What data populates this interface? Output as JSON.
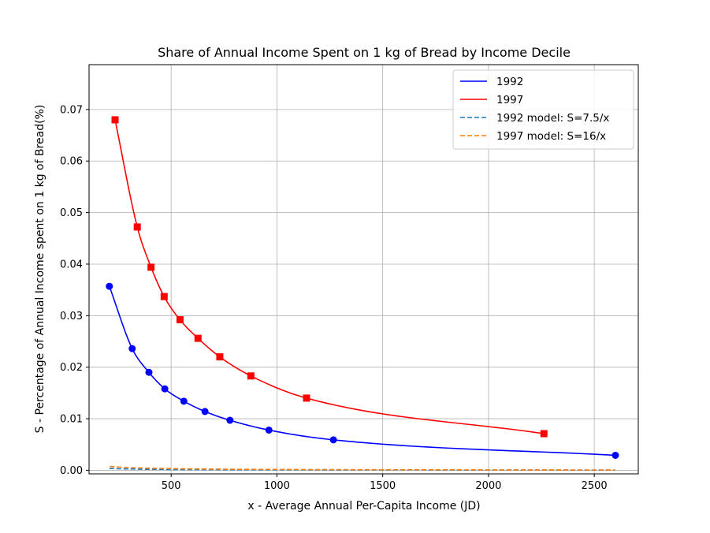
{
  "chart_data": {
    "type": "line",
    "title": "Share of Annual Income Spent on 1 kg of Bread by Income Decile",
    "xlabel": "x - Average Annual Per-Capita Income (JD)",
    "ylabel": "S - Percentage of Annual Income spent on 1 kg of Bread(%)",
    "xlim": [
      112,
      2708
    ],
    "ylim": [
      -0.0007,
      0.0787
    ],
    "xticks": [
      500,
      1000,
      1500,
      2000,
      2500
    ],
    "yticks": [
      0.0,
      0.01,
      0.02,
      0.03,
      0.04,
      0.05,
      0.06,
      0.07
    ],
    "xtick_labels": [
      "500",
      "1000",
      "1500",
      "2000",
      "2500"
    ],
    "ytick_labels": [
      "0.00",
      "0.01",
      "0.02",
      "0.03",
      "0.04",
      "0.05",
      "0.06",
      "0.07"
    ],
    "grid": true,
    "legend_position": "top-right",
    "series": [
      {
        "name": "1992",
        "style": "solid",
        "marker": "circle",
        "color": "#0000ff",
        "x": [
          208,
          316,
          395,
          470,
          560,
          660,
          778,
          962,
          1267,
          2600
        ],
        "y": [
          0.0357,
          0.0236,
          0.019,
          0.0158,
          0.0134,
          0.0114,
          0.0097,
          0.0078,
          0.0059,
          0.0029
        ]
      },
      {
        "name": "1997",
        "style": "solid",
        "marker": "square",
        "color": "#ff0000",
        "x": [
          235,
          340,
          405,
          467,
          542,
          627,
          730,
          877,
          1140,
          2262
        ],
        "y": [
          0.068,
          0.0472,
          0.0394,
          0.0337,
          0.0292,
          0.0256,
          0.022,
          0.0183,
          0.014,
          0.0071
        ]
      },
      {
        "name": "1992 model: S=7.5/x",
        "style": "dashed",
        "color": "#1f77b4",
        "model": {
          "k": 7.5,
          "x_range": [
            208,
            2600
          ]
        }
      },
      {
        "name": "1997 model: S=16/x",
        "style": "dashed",
        "color": "#ff7f0e",
        "model": {
          "k": 16,
          "x_range": [
            210,
            2600
          ]
        }
      }
    ]
  }
}
